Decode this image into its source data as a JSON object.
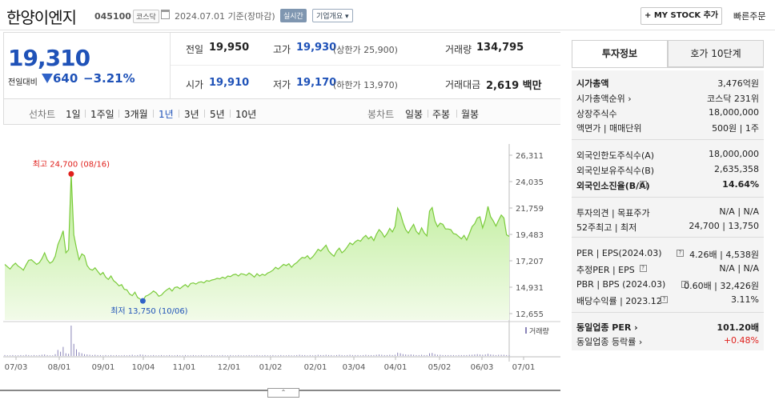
{
  "header": {
    "stock_name": "한양이엔지",
    "stock_code": "045100",
    "market": "코스닥",
    "date_text": "2024.07.01  기준(장마감)",
    "realtime_label": "실시간",
    "company_label": "기업개요 ▾",
    "mystock_label": "+ MY STOCK 추가",
    "quick_order_label": "빠른주문"
  },
  "price": {
    "current": "19,310",
    "change_label": "전일대비",
    "change_value": "640",
    "change_pct": "−3.21%",
    "prev_label": "전일",
    "prev_value": "19,950",
    "high_label": "고가",
    "high_value": "19,930",
    "high_limit": "(상한가 25,900)",
    "volume_label": "거래량",
    "volume_value": "134,795",
    "open_label": "시가",
    "open_value": "19,910",
    "low_label": "저가",
    "low_value": "19,170",
    "low_limit": "(하한가 13,970)",
    "amount_label": "거래대금",
    "amount_value": "2,619 백만"
  },
  "tabs": {
    "line_head": "선차트",
    "line_tabs": [
      "1일",
      "1주일",
      "3개월",
      "1년",
      "3년",
      "5년",
      "10년"
    ],
    "active": "1년",
    "candle_head": "봉차트",
    "candle_tabs": [
      "일봉",
      "주봉",
      "월봉"
    ]
  },
  "chart_data": {
    "type": "area",
    "y_ticks": [
      "26,311",
      "24,035",
      "21,759",
      "19,483",
      "17,207",
      "14,931",
      "12,655"
    ],
    "ylim": [
      12655,
      26311
    ],
    "x_ticks": [
      "07/03",
      "08/01",
      "09/01",
      "10/04",
      "11/01",
      "12/01",
      "01/02",
      "02/01",
      "03/04",
      "04/01",
      "05/02",
      "06/03",
      "07/01"
    ],
    "max_label": "최고 24,700 (08/16)",
    "min_label": "최저 13,750 (10/06)",
    "volume_label": "거래량",
    "series": [
      {
        "values": [
          16900,
          16700,
          16500,
          16800,
          17000,
          16750,
          16600,
          16400,
          16850,
          17250,
          17300,
          17100,
          16900,
          17050,
          17400,
          17900,
          17300,
          17000,
          17150,
          17600,
          18600,
          19150,
          19800,
          17900,
          18150,
          24700,
          19450,
          18300,
          17300,
          17800,
          17650,
          16800,
          16500,
          16400,
          16600,
          16300,
          16000,
          16200,
          15800,
          15600,
          15900,
          15500,
          15300,
          15050,
          15150,
          14750,
          14700,
          14350,
          14200,
          14500,
          14050,
          13900,
          13750,
          14150,
          14250,
          14400,
          14600,
          14450,
          14150,
          14250,
          14500,
          14700,
          14850,
          14600,
          14900,
          14950,
          14800,
          15000,
          15150,
          14950,
          15250,
          15300,
          15200,
          15350,
          15400,
          15300,
          15500,
          15450,
          15550,
          15600,
          15700,
          15650,
          15800,
          15700,
          15900,
          15850,
          16000,
          16050,
          15900,
          16100,
          16050,
          15950,
          16150,
          16000,
          15800,
          16100,
          15900,
          16050,
          15950,
          16150,
          16250,
          16400,
          16650,
          16500,
          16700,
          16900,
          16800,
          16950,
          16650,
          16900,
          17050,
          17300,
          17500,
          17450,
          17650,
          17350,
          17550,
          17850,
          18200,
          18050,
          18300,
          18550,
          18050,
          17800,
          17600,
          18050,
          18300,
          17900,
          18100,
          18400,
          18750,
          18600,
          18850,
          19000,
          18900,
          19200,
          19400,
          19100,
          19300,
          18950,
          19500,
          19900,
          19650,
          19250,
          19550,
          20000,
          19700,
          20150,
          21750,
          21300,
          20500,
          19900,
          19600,
          20000,
          20350,
          19750,
          19500,
          20050,
          19600,
          19350,
          21500,
          21800,
          20650,
          20150,
          20450,
          20350,
          19950,
          19950,
          19900,
          19550,
          19500,
          19300,
          19100,
          19400,
          19000,
          19550,
          20150,
          20400,
          20900,
          21000,
          20050,
          20750,
          21900,
          21000,
          20650,
          20200,
          20700,
          21150,
          20900,
          19450,
          19310
        ]
      }
    ],
    "volume_values": [
      3,
      2,
      2,
      3,
      2,
      2,
      3,
      2,
      4,
      3,
      2,
      3,
      2,
      3,
      4,
      5,
      3,
      2,
      2,
      6,
      20,
      14,
      30,
      9,
      7,
      100,
      40,
      22,
      12,
      9,
      6,
      5,
      4,
      3,
      4,
      3,
      3,
      2,
      3,
      2,
      3,
      2,
      3,
      2,
      2,
      3,
      2,
      3,
      4,
      2,
      3,
      5,
      4,
      3,
      2,
      2,
      3,
      2,
      2,
      3,
      2,
      2,
      3,
      2,
      2,
      3,
      2,
      2,
      3,
      2,
      2,
      3,
      2,
      2,
      3,
      2,
      2,
      2,
      3,
      2,
      2,
      2,
      3,
      2,
      2,
      3,
      2,
      2,
      3,
      2,
      2,
      2,
      3,
      2,
      2,
      3,
      2,
      2,
      3,
      2,
      2,
      3,
      2,
      2,
      3,
      2,
      2,
      3,
      2,
      2,
      3,
      4,
      3,
      3,
      2,
      3,
      2,
      3,
      4,
      3,
      3,
      4,
      3,
      3,
      2,
      3,
      4,
      3,
      2,
      3,
      4,
      3,
      3,
      3,
      2,
      3,
      4,
      3,
      3,
      3,
      4,
      5,
      4,
      3,
      3,
      4,
      3,
      4,
      11,
      9,
      6,
      5,
      4,
      5,
      4,
      3,
      3,
      4,
      3,
      3,
      9,
      10,
      6,
      4,
      4,
      3,
      3,
      3,
      3,
      3,
      2,
      3,
      3,
      3,
      3,
      4,
      4,
      5,
      6,
      5,
      4,
      5,
      7,
      5,
      4,
      3,
      4,
      4,
      4,
      3,
      3
    ]
  },
  "invest": {
    "tab_invest": "투자정보",
    "tab_hoga": "호가 10단계",
    "rows1": [
      {
        "label": "시가총액",
        "value": "3,476억원"
      },
      {
        "label": "시가총액순위 ›",
        "value": "코스닥 231위"
      },
      {
        "label": "상장주식수",
        "value": "18,000,000"
      },
      {
        "label": "액면가 | 매매단위",
        "value": "500원 | 1주"
      }
    ],
    "rows2": [
      {
        "label": "외국인한도주식수(A)",
        "value": "18,000,000"
      },
      {
        "label": "외국인보유주식수(B)",
        "value": "2,635,358"
      },
      {
        "label": "외국인소진율(B/A)",
        "value": "14.64%"
      }
    ],
    "rows3": [
      {
        "label": "투자의견 | 목표주가",
        "value": "N/A | N/A"
      },
      {
        "label": "52주최고 | 최저",
        "value": "24,700 | 13,750"
      }
    ],
    "rows4": [
      {
        "label": "PER | EPS(2024.03)",
        "value": "4.26배 | 4,538원"
      },
      {
        "label": "추정PER | EPS",
        "value": "N/A | N/A"
      },
      {
        "label": "PBR | BPS (2024.03)",
        "value": "0.60배 | 32,426원"
      },
      {
        "label": "배당수익률 | 2023.12",
        "value": "3.11%"
      }
    ],
    "rows5": [
      {
        "label": "동일업종 PER ›",
        "value": "101.20배"
      },
      {
        "label": "동일업종 등락률 ›",
        "value": "+0.48%"
      }
    ]
  },
  "colors": {
    "down": "#1f52b8",
    "up": "#e0201c",
    "area": "#c8f0a8",
    "line": "#7acb3a"
  }
}
